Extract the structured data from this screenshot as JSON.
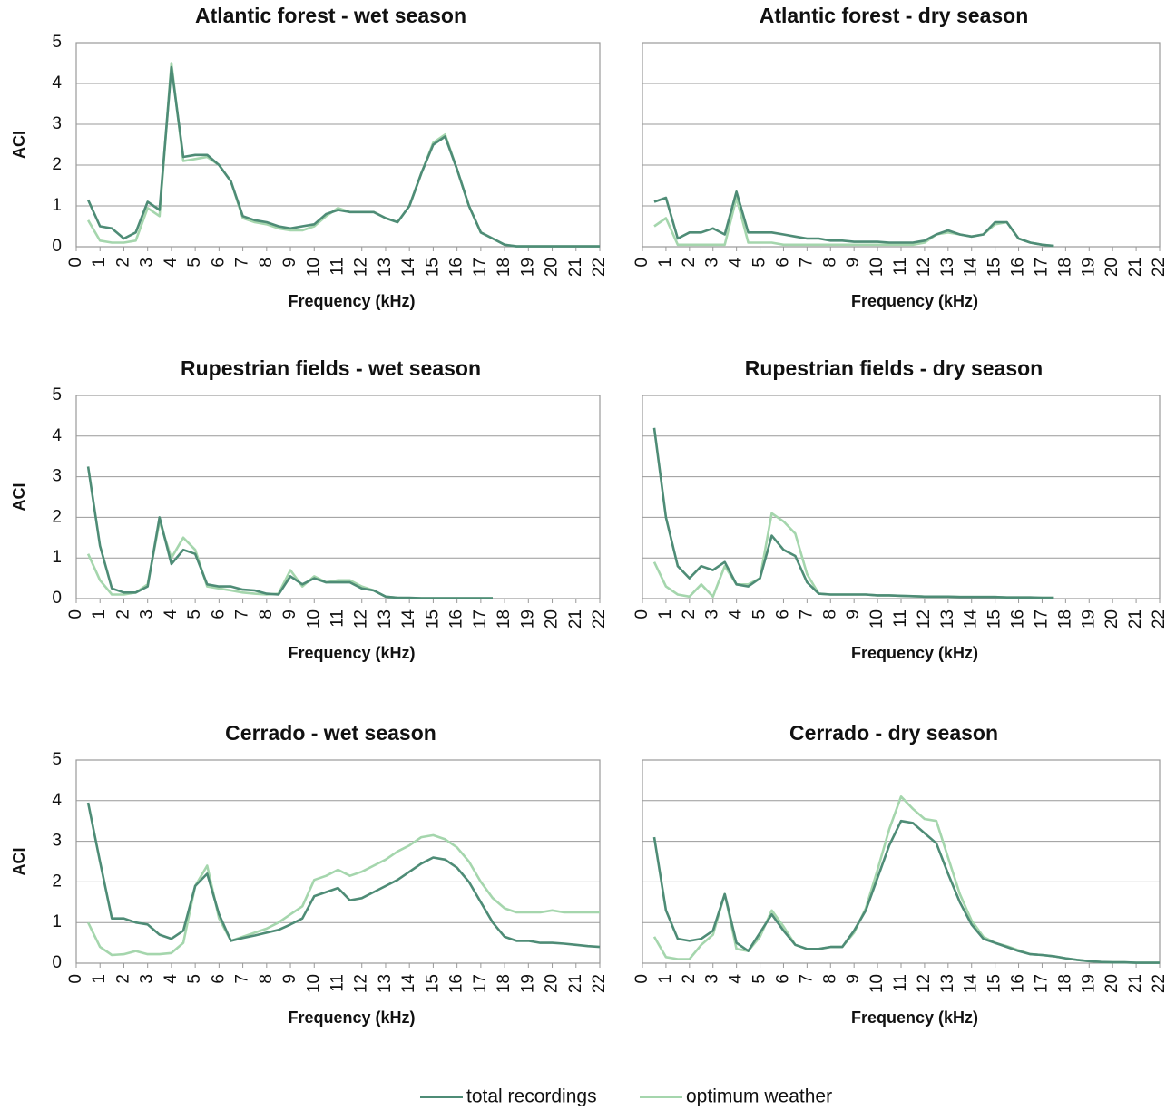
{
  "legend": [
    {
      "name": "total recordings",
      "color": "#4e8c76"
    },
    {
      "name": "optimum weather",
      "color": "#a5d6ad"
    }
  ],
  "chart_data": [
    {
      "type": "line",
      "title": "Atlantic forest - wet season",
      "xlabel": "Frequency (kHz)",
      "ylabel": "ACI",
      "x": [
        0.5,
        1,
        1.5,
        2,
        2.5,
        3,
        3.5,
        4,
        4.5,
        5,
        5.5,
        6,
        6.5,
        7,
        7.5,
        8,
        8.5,
        9,
        9.5,
        10,
        10.5,
        11,
        11.5,
        12,
        12.5,
        13,
        13.5,
        14,
        14.5,
        15,
        15.5,
        16,
        16.5,
        17,
        17.5,
        18,
        18.5,
        19,
        19.5,
        20,
        20.5,
        21,
        21.5,
        22
      ],
      "xlim": [
        0,
        22
      ],
      "xticks": [
        0,
        1,
        2,
        3,
        4,
        5,
        6,
        7,
        8,
        9,
        10,
        11,
        12,
        13,
        14,
        15,
        16,
        17,
        18,
        19,
        20,
        21,
        22
      ],
      "ylim": [
        0,
        5
      ],
      "yticks": [
        0,
        1,
        2,
        3,
        4,
        5
      ],
      "grid": true,
      "series": [
        {
          "values": [
            1.15,
            0.5,
            0.45,
            0.2,
            0.35,
            1.1,
            0.9,
            4.4,
            2.2,
            2.25,
            2.25,
            2.0,
            1.6,
            0.75,
            0.65,
            0.6,
            0.5,
            0.45,
            0.5,
            0.55,
            0.8,
            0.9,
            0.85,
            0.85,
            0.85,
            0.7,
            0.6,
            1.0,
            1.8,
            2.5,
            2.7,
            1.9,
            1.0,
            0.35,
            0.2,
            0.05,
            0.01,
            0.01,
            0.01,
            0.01,
            0.01,
            0.01,
            0.01,
            0.01
          ]
        },
        {
          "values": [
            0.65,
            0.15,
            0.1,
            0.1,
            0.15,
            0.95,
            0.75,
            4.5,
            2.1,
            2.15,
            2.2,
            2.0,
            1.6,
            0.7,
            0.6,
            0.55,
            0.45,
            0.4,
            0.4,
            0.5,
            0.75,
            0.95,
            0.85,
            0.85,
            0.85,
            0.7,
            0.6,
            1.0,
            1.8,
            2.55,
            2.75,
            1.9,
            1.0,
            0.35,
            0.2,
            0.05,
            0.01,
            0.01,
            0.01,
            0.01,
            0.01,
            0.01,
            0.01,
            0.01
          ]
        }
      ]
    },
    {
      "type": "line",
      "title": "Atlantic forest - dry season",
      "xlabel": "Frequency (kHz)",
      "x": [
        0.5,
        1,
        1.5,
        2,
        2.5,
        3,
        3.5,
        4,
        4.5,
        5,
        5.5,
        6,
        6.5,
        7,
        7.5,
        8,
        8.5,
        9,
        9.5,
        10,
        10.5,
        11,
        11.5,
        12,
        12.5,
        13,
        13.5,
        14,
        14.5,
        15,
        15.5,
        16,
        16.5,
        17,
        17.5
      ],
      "xlim": [
        0,
        22
      ],
      "xticks": [
        0,
        1,
        2,
        3,
        4,
        5,
        6,
        7,
        8,
        9,
        10,
        11,
        12,
        13,
        14,
        15,
        16,
        17,
        18,
        19,
        20,
        21,
        22
      ],
      "ylim": [
        0,
        5
      ],
      "yticks": [
        0,
        1,
        2,
        3,
        4,
        5
      ],
      "grid": true,
      "series": [
        {
          "values": [
            1.1,
            1.2,
            0.2,
            0.35,
            0.35,
            0.45,
            0.3,
            1.35,
            0.35,
            0.35,
            0.35,
            0.3,
            0.25,
            0.2,
            0.2,
            0.15,
            0.15,
            0.12,
            0.12,
            0.12,
            0.1,
            0.1,
            0.1,
            0.15,
            0.3,
            0.4,
            0.3,
            0.25,
            0.3,
            0.6,
            0.6,
            0.2,
            0.1,
            0.05,
            0.02
          ]
        },
        {
          "values": [
            0.5,
            0.7,
            0.05,
            0.05,
            0.05,
            0.05,
            0.05,
            1.2,
            0.1,
            0.1,
            0.1,
            0.05,
            0.05,
            0.05,
            0.05,
            0.05,
            0.05,
            0.05,
            0.05,
            0.05,
            0.05,
            0.05,
            0.05,
            0.1,
            0.3,
            0.35,
            0.3,
            0.25,
            0.3,
            0.55,
            0.6,
            0.2,
            0.1,
            0.05,
            0.02
          ]
        }
      ]
    },
    {
      "type": "line",
      "title": "Rupestrian fields - wet season",
      "xlabel": "Frequency (kHz)",
      "ylabel": "ACI",
      "x": [
        0.5,
        1,
        1.5,
        2,
        2.5,
        3,
        3.5,
        4,
        4.5,
        5,
        5.5,
        6,
        6.5,
        7,
        7.5,
        8,
        8.5,
        9,
        9.5,
        10,
        10.5,
        11,
        11.5,
        12,
        12.5,
        13,
        13.5,
        14,
        14.5,
        15,
        15.5,
        16,
        16.5,
        17,
        17.5
      ],
      "xlim": [
        0,
        22
      ],
      "xticks": [
        0,
        1,
        2,
        3,
        4,
        5,
        6,
        7,
        8,
        9,
        10,
        11,
        12,
        13,
        14,
        15,
        16,
        17,
        18,
        19,
        20,
        21,
        22
      ],
      "ylim": [
        0,
        5
      ],
      "yticks": [
        0,
        1,
        2,
        3,
        4,
        5
      ],
      "grid": true,
      "series": [
        {
          "values": [
            3.25,
            1.3,
            0.25,
            0.15,
            0.15,
            0.3,
            2.0,
            0.85,
            1.2,
            1.1,
            0.35,
            0.3,
            0.3,
            0.22,
            0.2,
            0.12,
            0.1,
            0.55,
            0.35,
            0.5,
            0.4,
            0.4,
            0.4,
            0.25,
            0.2,
            0.05,
            0.02,
            0.02,
            0.01,
            0.01,
            0.01,
            0.01,
            0.01,
            0.01,
            0.01
          ]
        },
        {
          "values": [
            1.1,
            0.45,
            0.1,
            0.1,
            0.15,
            0.35,
            1.9,
            1.0,
            1.5,
            1.2,
            0.3,
            0.25,
            0.2,
            0.15,
            0.12,
            0.1,
            0.12,
            0.7,
            0.3,
            0.55,
            0.4,
            0.45,
            0.45,
            0.3,
            0.2,
            0.05,
            0.02,
            0.01,
            0.01,
            0.01,
            0.01,
            0.01,
            0.01,
            0.01,
            0.01
          ]
        }
      ]
    },
    {
      "type": "line",
      "title": "Rupestrian fields - dry season",
      "xlabel": "Frequency (kHz)",
      "x": [
        0.5,
        1,
        1.5,
        2,
        2.5,
        3,
        3.5,
        4,
        4.5,
        5,
        5.5,
        6,
        6.5,
        7,
        7.5,
        8,
        8.5,
        9,
        9.5,
        10,
        10.5,
        11,
        11.5,
        12,
        12.5,
        13,
        13.5,
        14,
        14.5,
        15,
        15.5,
        16,
        16.5,
        17,
        17.5
      ],
      "xlim": [
        0,
        22
      ],
      "xticks": [
        0,
        1,
        2,
        3,
        4,
        5,
        6,
        7,
        8,
        9,
        10,
        11,
        12,
        13,
        14,
        15,
        16,
        17,
        18,
        19,
        20,
        21,
        22
      ],
      "ylim": [
        0,
        5
      ],
      "yticks": [
        0,
        1,
        2,
        3,
        4,
        5
      ],
      "grid": true,
      "series": [
        {
          "values": [
            4.2,
            2.0,
            0.8,
            0.5,
            0.8,
            0.7,
            0.9,
            0.35,
            0.3,
            0.5,
            1.55,
            1.2,
            1.05,
            0.4,
            0.12,
            0.1,
            0.1,
            0.1,
            0.1,
            0.08,
            0.08,
            0.07,
            0.06,
            0.05,
            0.05,
            0.05,
            0.04,
            0.04,
            0.04,
            0.04,
            0.03,
            0.03,
            0.03,
            0.02,
            0.02
          ]
        },
        {
          "values": [
            0.9,
            0.3,
            0.1,
            0.05,
            0.35,
            0.05,
            0.8,
            0.35,
            0.35,
            0.5,
            2.1,
            1.9,
            1.6,
            0.6,
            0.12,
            0.1,
            0.1,
            0.1,
            0.1,
            0.08,
            0.08,
            0.07,
            0.06,
            0.05,
            0.05,
            0.05,
            0.04,
            0.04,
            0.04,
            0.04,
            0.03,
            0.03,
            0.03,
            0.02,
            0.02
          ]
        }
      ]
    },
    {
      "type": "line",
      "title": "Cerrado - wet season",
      "xlabel": "Frequency (kHz)",
      "ylabel": "ACI",
      "x": [
        0.5,
        1,
        1.5,
        2,
        2.5,
        3,
        3.5,
        4,
        4.5,
        5,
        5.5,
        6,
        6.5,
        7,
        7.5,
        8,
        8.5,
        9,
        9.5,
        10,
        10.5,
        11,
        11.5,
        12,
        12.5,
        13,
        13.5,
        14,
        14.5,
        15,
        15.5,
        16,
        16.5,
        17,
        17.5,
        18,
        18.5,
        19,
        19.5,
        20,
        20.5,
        21,
        21.5,
        22
      ],
      "xlim": [
        0,
        22
      ],
      "xticks": [
        0,
        1,
        2,
        3,
        4,
        5,
        6,
        7,
        8,
        9,
        10,
        11,
        12,
        13,
        14,
        15,
        16,
        17,
        18,
        19,
        20,
        21,
        22
      ],
      "ylim": [
        0,
        5
      ],
      "yticks": [
        0,
        1,
        2,
        3,
        4,
        5
      ],
      "grid": true,
      "series": [
        {
          "values": [
            3.95,
            2.5,
            1.1,
            1.1,
            1.0,
            0.95,
            0.7,
            0.6,
            0.8,
            1.9,
            2.2,
            1.2,
            0.55,
            0.62,
            0.68,
            0.75,
            0.82,
            0.95,
            1.1,
            1.65,
            1.75,
            1.85,
            1.55,
            1.6,
            1.75,
            1.9,
            2.05,
            2.25,
            2.45,
            2.6,
            2.55,
            2.35,
            2.0,
            1.5,
            1.0,
            0.65,
            0.55,
            0.55,
            0.5,
            0.5,
            0.48,
            0.45,
            0.42,
            0.4
          ]
        },
        {
          "values": [
            1.0,
            0.4,
            0.2,
            0.22,
            0.3,
            0.22,
            0.22,
            0.25,
            0.5,
            1.9,
            2.4,
            1.1,
            0.55,
            0.65,
            0.75,
            0.85,
            1.0,
            1.2,
            1.4,
            2.05,
            2.15,
            2.3,
            2.15,
            2.25,
            2.4,
            2.55,
            2.75,
            2.9,
            3.1,
            3.15,
            3.05,
            2.85,
            2.5,
            2.0,
            1.6,
            1.35,
            1.25,
            1.25,
            1.25,
            1.3,
            1.25,
            1.25,
            1.25,
            1.25
          ]
        }
      ]
    },
    {
      "type": "line",
      "title": "Cerrado - dry season",
      "xlabel": "Frequency (kHz)",
      "x": [
        0.5,
        1,
        1.5,
        2,
        2.5,
        3,
        3.5,
        4,
        4.5,
        5,
        5.5,
        6,
        6.5,
        7,
        7.5,
        8,
        8.5,
        9,
        9.5,
        10,
        10.5,
        11,
        11.5,
        12,
        12.5,
        13,
        13.5,
        14,
        14.5,
        15,
        15.5,
        16,
        16.5,
        17,
        17.5,
        18,
        18.5,
        19,
        19.5,
        20,
        20.5,
        21,
        21.5,
        22
      ],
      "xlim": [
        0,
        22
      ],
      "xticks": [
        0,
        1,
        2,
        3,
        4,
        5,
        6,
        7,
        8,
        9,
        10,
        11,
        12,
        13,
        14,
        15,
        16,
        17,
        18,
        19,
        20,
        21,
        22
      ],
      "ylim": [
        0,
        5
      ],
      "yticks": [
        0,
        1,
        2,
        3,
        4,
        5
      ],
      "grid": true,
      "series": [
        {
          "values": [
            3.1,
            1.3,
            0.6,
            0.55,
            0.6,
            0.8,
            1.7,
            0.5,
            0.3,
            0.75,
            1.2,
            0.8,
            0.45,
            0.35,
            0.35,
            0.4,
            0.4,
            0.8,
            1.3,
            2.1,
            2.9,
            3.5,
            3.45,
            3.2,
            2.95,
            2.2,
            1.5,
            0.95,
            0.6,
            0.5,
            0.4,
            0.3,
            0.22,
            0.2,
            0.17,
            0.12,
            0.08,
            0.05,
            0.03,
            0.02,
            0.02,
            0.01,
            0.01,
            0.01
          ]
        },
        {
          "values": [
            0.65,
            0.15,
            0.1,
            0.1,
            0.45,
            0.7,
            1.7,
            0.35,
            0.3,
            0.65,
            1.3,
            0.9,
            0.45,
            0.35,
            0.35,
            0.4,
            0.4,
            0.75,
            1.35,
            2.3,
            3.3,
            4.1,
            3.8,
            3.55,
            3.5,
            2.6,
            1.7,
            1.05,
            0.65,
            0.5,
            0.42,
            0.32,
            0.22,
            0.2,
            0.17,
            0.12,
            0.08,
            0.05,
            0.03,
            0.02,
            0.02,
            0.01,
            0.01,
            0.01
          ]
        }
      ]
    }
  ]
}
